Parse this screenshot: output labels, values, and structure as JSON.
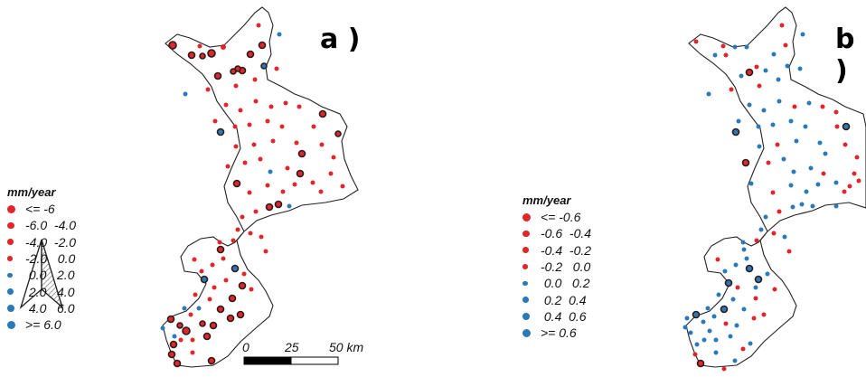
{
  "colors": {
    "negative": "#e0262b",
    "positive": "#2a7ab8",
    "outline": "#222222",
    "highlight": "#3b1a1a"
  },
  "panel_a": {
    "label": "a )",
    "legend_title": "mm/year",
    "legend": [
      {
        "label": "<= -6",
        "color": "#e0262b",
        "size": 4.6
      },
      {
        "label": "-6.0  -4.0",
        "color": "#e0262b",
        "size": 3.9
      },
      {
        "label": "-4.0  -2.0",
        "color": "#e0262b",
        "size": 3.3
      },
      {
        "label": "-2.0   0.0",
        "color": "#e0262b",
        "size": 2.8
      },
      {
        "label": " 0.0   2.0",
        "color": "#2a7ab8",
        "size": 2.8
      },
      {
        "label": " 2.0   4.0",
        "color": "#2a7ab8",
        "size": 3.3
      },
      {
        "label": " 4.0   6.0",
        "color": "#2a7ab8",
        "size": 3.9
      },
      {
        "label": ">= 6.0",
        "color": "#2a7ab8",
        "size": 4.6
      }
    ]
  },
  "panel_b": {
    "label": "b )",
    "legend_title": "mm/year",
    "legend": [
      {
        "label": "<= -0.6",
        "color": "#e0262b",
        "size": 4.6
      },
      {
        "label": "-0.6  -0.4",
        "color": "#e0262b",
        "size": 3.9
      },
      {
        "label": "-0.4  -0.2",
        "color": "#e0262b",
        "size": 3.3
      },
      {
        "label": "-0.2   0.0",
        "color": "#e0262b",
        "size": 2.8
      },
      {
        "label": " 0.0   0.2",
        "color": "#2a7ab8",
        "size": 2.8
      },
      {
        "label": " 0.2  0.4",
        "color": "#2a7ab8",
        "size": 3.3
      },
      {
        "label": " 0.4  0.6",
        "color": "#2a7ab8",
        "size": 3.9
      },
      {
        "label": ">= 0.6",
        "color": "#2a7ab8",
        "size": 4.6
      }
    ]
  },
  "scalebar": {
    "labels": [
      "0",
      "25",
      "50 km"
    ]
  },
  "icons": {
    "north_arrow": "north-arrow-icon"
  }
}
